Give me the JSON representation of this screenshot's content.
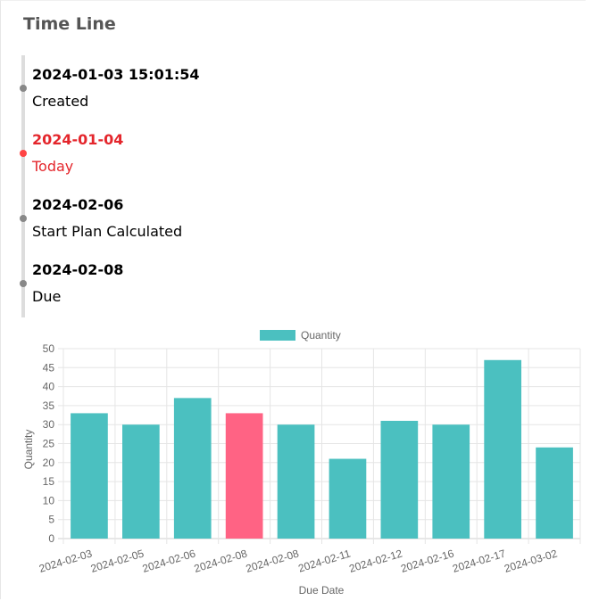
{
  "page": {
    "title": "Time Line"
  },
  "timeline": {
    "items": [
      {
        "date": "2024-01-03 15:01:54",
        "text": "Created",
        "highlight": false
      },
      {
        "date": "2024-01-04",
        "text": "Today",
        "highlight": true
      },
      {
        "date": "2024-02-06",
        "text": "Start Plan Calculated",
        "highlight": false
      },
      {
        "date": "2024-02-08",
        "text": "Due",
        "highlight": false
      }
    ]
  },
  "colors": {
    "bar": "#4bc0c0",
    "highlight_bar": "#ff6384",
    "today_text": "#e4262c"
  },
  "chart_data": {
    "type": "bar",
    "categories": [
      "2024-02-03",
      "2024-02-05",
      "2024-02-06",
      "2024-02-08",
      "2024-02-08",
      "2024-02-11",
      "2024-02-12",
      "2024-02-16",
      "2024-02-17",
      "2024-03-02"
    ],
    "series": [
      {
        "name": "Quantity",
        "values": [
          33,
          30,
          37,
          33,
          30,
          21,
          31,
          30,
          47,
          24
        ]
      }
    ],
    "highlight_index": 3,
    "xlabel": "Due Date",
    "ylabel": "Quantity",
    "ylim": [
      0,
      50
    ],
    "yticks": [
      0,
      5,
      10,
      15,
      20,
      25,
      30,
      35,
      40,
      45,
      50
    ],
    "grid": true,
    "legend": "top-center"
  }
}
